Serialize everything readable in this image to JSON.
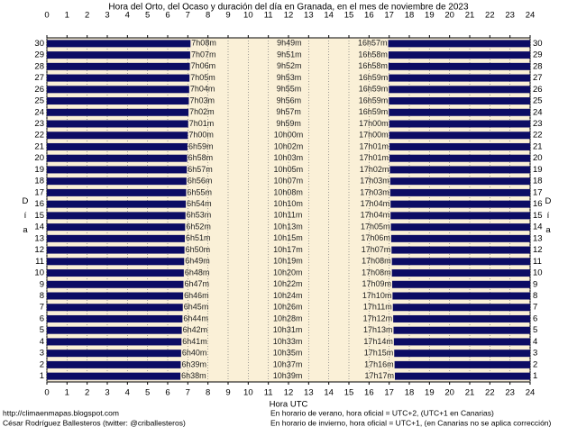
{
  "chart_data": {
    "type": "daylight",
    "title": "Hora del Orto, del Ocaso y duración del día en Granada, en el mes de noviembre de 2023",
    "x_label": "Hora UTC",
    "y_label": "Día",
    "footer_left": [
      "http://climaenmapas.blogspot.com",
      "César Rodríguez Ballesteros (twitter: @criballesteros)"
    ],
    "footer_right": [
      "En horario de verano, hora oficial = UTC+2, (UTC+1 en Canarias)",
      "En horario de invierno, hora oficial = UTC+1, (en Canarias no se aplica corrección)"
    ],
    "categories": [
      1,
      2,
      3,
      4,
      5,
      6,
      7,
      8,
      9,
      10,
      11,
      12,
      13,
      14,
      15,
      16,
      17,
      18,
      19,
      20,
      21,
      22,
      23,
      24,
      25,
      26,
      27,
      28,
      29,
      30
    ],
    "color": "#0c0c64",
    "background": "#faf0d7",
    "grid": true,
    "xlim": [
      0,
      24
    ],
    "xticks": [
      0,
      1,
      2,
      3,
      4,
      5,
      6,
      7,
      8,
      9,
      10,
      11,
      12,
      13,
      14,
      15,
      16,
      17,
      18,
      19,
      20,
      21,
      22,
      23,
      24
    ],
    "sunrise": {
      "values": [
        6.6333,
        6.65,
        6.6667,
        6.6833,
        6.7,
        6.7333,
        6.75,
        6.7667,
        6.7833,
        6.8,
        6.8167,
        6.8333,
        6.85,
        6.8667,
        6.8833,
        6.9,
        6.9167,
        6.9333,
        6.95,
        6.9667,
        6.9833,
        7,
        7.0167,
        7.0333,
        7.05,
        7.0667,
        7.0833,
        7.1,
        7.1167,
        7.1333
      ],
      "value_labels": [
        "6h38m",
        "6h39m",
        "6h40m",
        "6h41m",
        "6h42m",
        "6h44m",
        "6h45m",
        "6h46m",
        "6h47m",
        "6h48m",
        "6h49m",
        "6h50m",
        "6h51m",
        "6h52m",
        "6h53m",
        "6h54m",
        "6h55m",
        "6h56m",
        "6h57m",
        "6h58m",
        "6h59m",
        "7h00m",
        "7h01m",
        "7h02m",
        "7h03m",
        "7h04m",
        "7h05m",
        "7h06m",
        "7h07m",
        "7h08m"
      ]
    },
    "day_length": {
      "values": [
        10.65,
        10.6167,
        10.5833,
        10.55,
        10.5167,
        10.4667,
        10.4333,
        10.4,
        10.3667,
        10.3333,
        10.3167,
        10.2833,
        10.25,
        10.2167,
        10.1833,
        10.1667,
        10.1333,
        10.1167,
        10.0833,
        10.05,
        10.0333,
        10,
        9.9833,
        9.95,
        9.9333,
        9.9167,
        9.8833,
        9.8667,
        9.85,
        9.8167
      ],
      "value_labels": [
        "10h39m",
        "10h37m",
        "10h35m",
        "10h33m",
        "10h31m",
        "10h28m",
        "10h26m",
        "10h24m",
        "10h22m",
        "10h20m",
        "10h19m",
        "10h17m",
        "10h15m",
        "10h13m",
        "10h11m",
        "10h10m",
        "10h08m",
        "10h07m",
        "10h05m",
        "10h03m",
        "10h02m",
        "10h00m",
        "9h59m",
        "9h57m",
        "9h56m",
        "9h55m",
        "9h53m",
        "9h52m",
        "9h51m",
        "9h49m"
      ]
    },
    "sunset": {
      "values": [
        17.2833,
        17.2667,
        17.25,
        17.2333,
        17.2167,
        17.2,
        17.1833,
        17.1667,
        17.15,
        17.1333,
        17.1333,
        17.1167,
        17.1,
        17.0833,
        17.0667,
        17.0667,
        17.05,
        17.05,
        17.0333,
        17.0167,
        17.0167,
        17,
        17,
        16.9833,
        16.9833,
        16.9833,
        16.9833,
        16.9667,
        16.9667,
        16.95
      ],
      "value_labels": [
        "17h17m",
        "17h16m",
        "17h15m",
        "17h14m",
        "17h13m",
        "17h12m",
        "17h11m",
        "17h10m",
        "17h09m",
        "17h08m",
        "17h08m",
        "17h07m",
        "17h06m",
        "17h05m",
        "17h04m",
        "17h04m",
        "17h03m",
        "17h03m",
        "17h02m",
        "17h01m",
        "17h01m",
        "17h00m",
        "17h00m",
        "16h59m",
        "16h59m",
        "16h59m",
        "16h59m",
        "16h58m",
        "16h58m",
        "16h57m"
      ]
    }
  }
}
